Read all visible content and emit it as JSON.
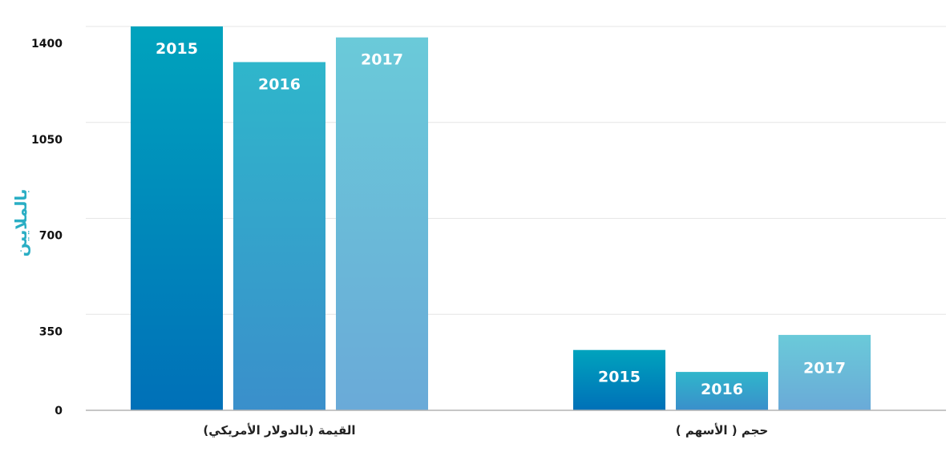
{
  "colors": {
    "ylabel": "#2aaec4",
    "series": [
      {
        "top": "#00a3bd",
        "bottom": "#0070b8"
      },
      {
        "top": "#2fb6cb",
        "bottom": "#3a8fcb"
      },
      {
        "top": "#6acad9",
        "bottom": "#6aaad8"
      }
    ]
  },
  "chart_data": {
    "type": "bar",
    "ylabel": "بالملايين",
    "ylim": [
      0,
      1400
    ],
    "yticks": [
      0,
      350,
      700,
      1050,
      1400
    ],
    "grid": true,
    "legend": "none",
    "categories": [
      "القيمة (بالدولار الأمريكي)",
      "حجم ( الأسهم )"
    ],
    "series": [
      {
        "name": "2015",
        "values": [
          1400,
          220
        ]
      },
      {
        "name": "2016",
        "values": [
          1270,
          140
        ]
      },
      {
        "name": "2017",
        "values": [
          1360,
          275
        ]
      }
    ]
  }
}
